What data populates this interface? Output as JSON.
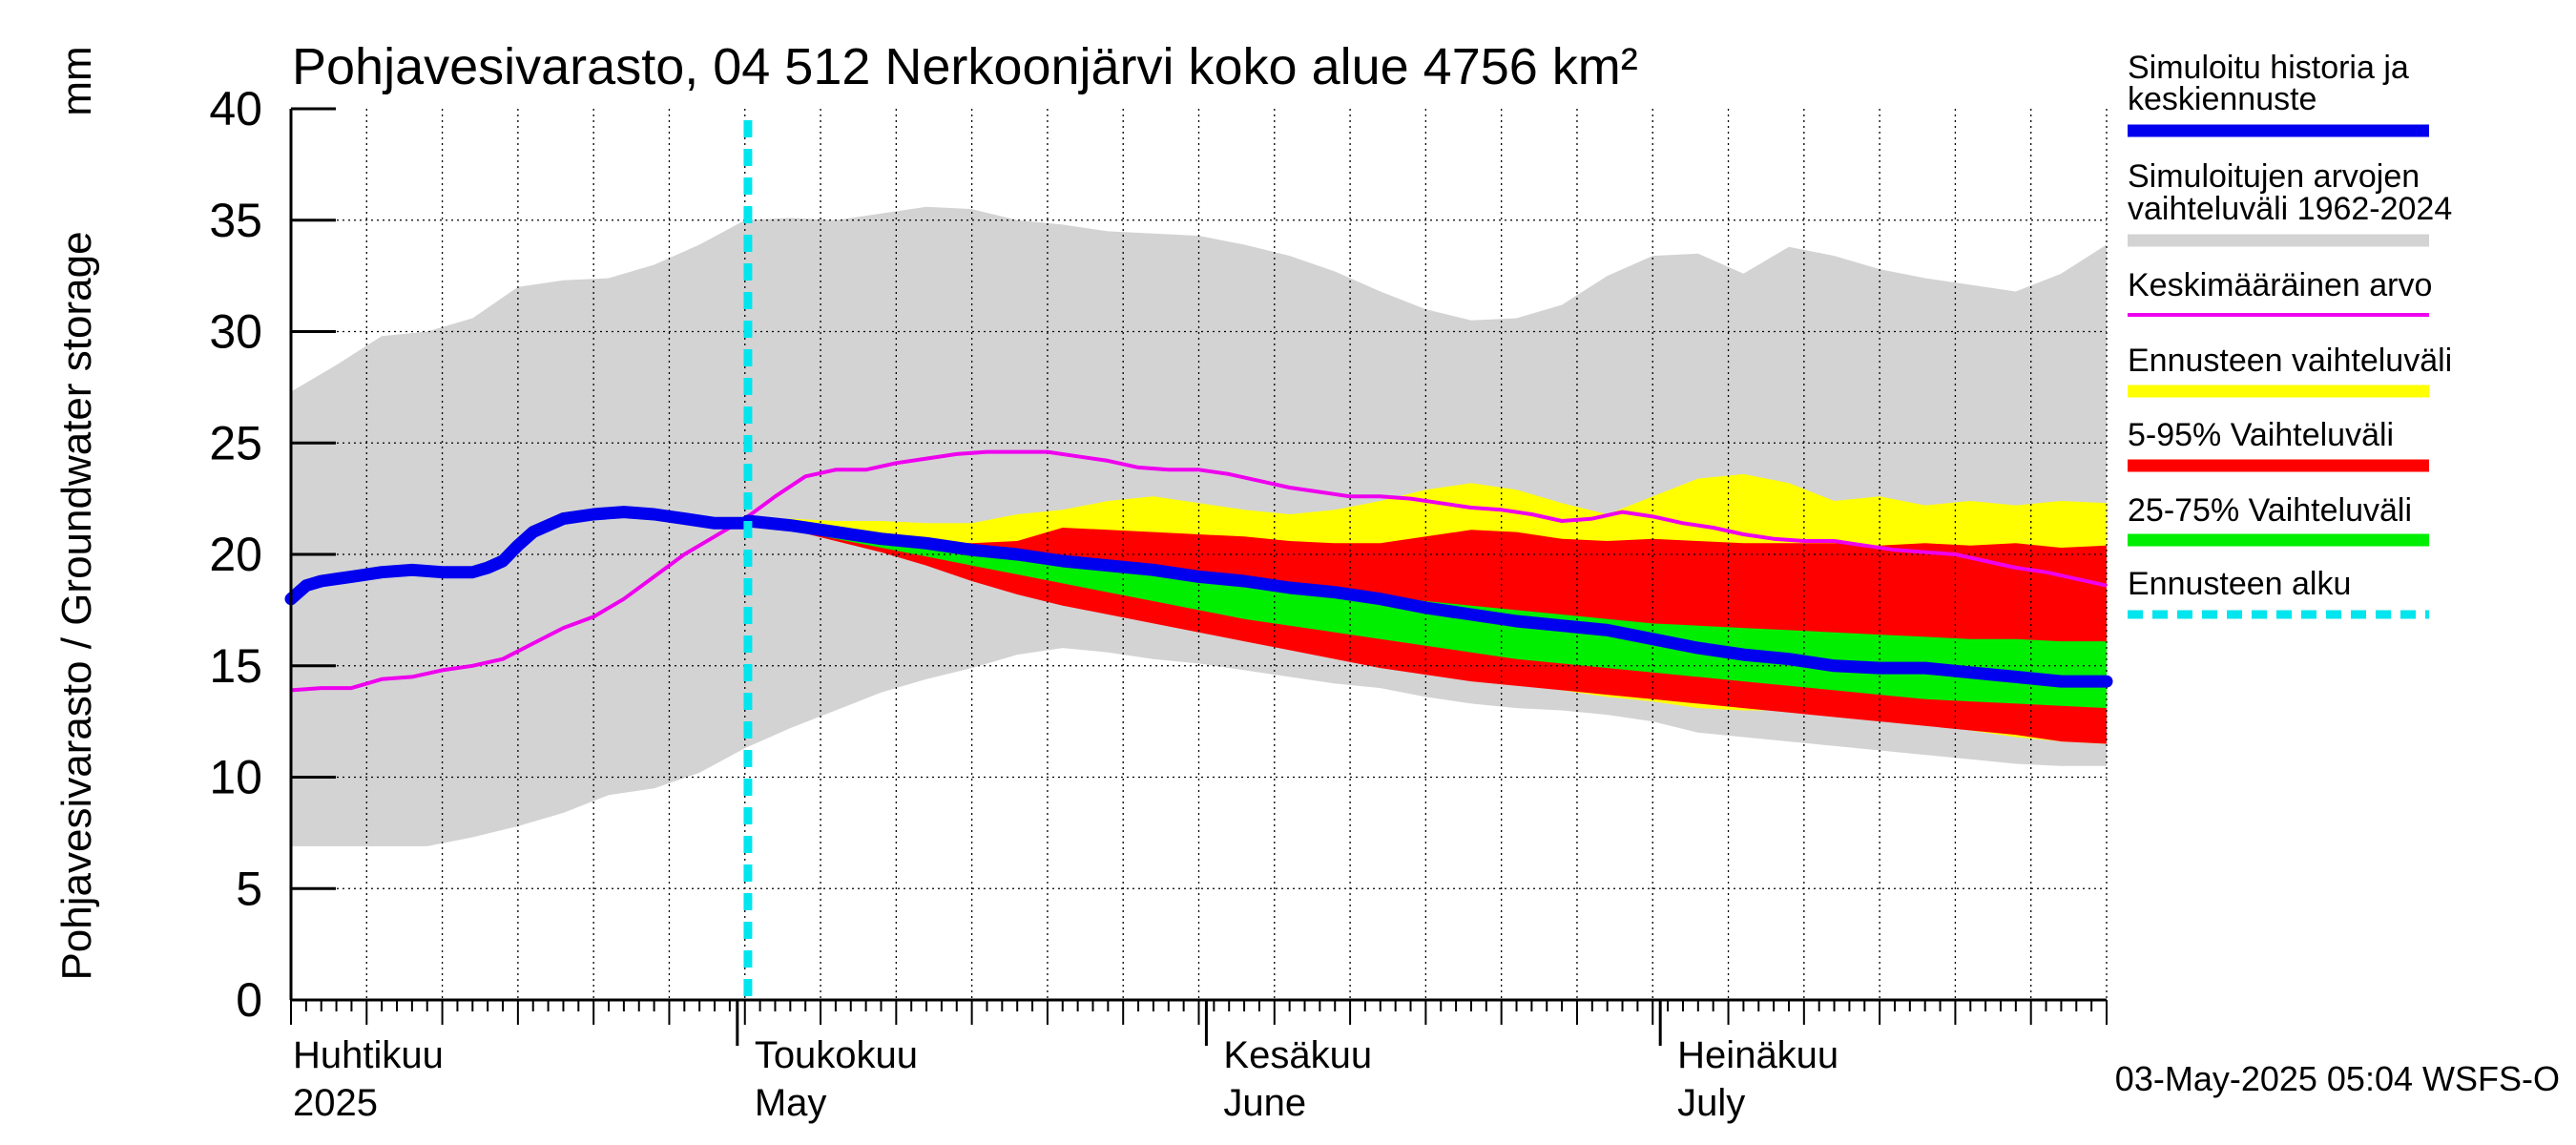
{
  "chart_data": {
    "type": "area",
    "title": "Pohjavesivarasto, 04 512 Nerkoonjärvi koko alue 4756 km²",
    "ylabel": "Pohjavesivarasto / Groundwater storage",
    "yunit": "mm",
    "ylim": [
      0,
      40
    ],
    "yticks": [
      "0",
      "5",
      "10",
      "15",
      "20",
      "25",
      "30",
      "35",
      "40"
    ],
    "xlim_day": [
      0,
      120
    ],
    "month_labels": [
      {
        "day": 0,
        "fi": "Huhtikuu",
        "en": "2025"
      },
      {
        "day": 29.5,
        "fi": "Toukokuu",
        "en": "May"
      },
      {
        "day": 60.5,
        "fi": "Kesäkuu",
        "en": "June"
      },
      {
        "day": 90.5,
        "fi": "Heinäkuu",
        "en": "July"
      }
    ],
    "forecast_start_day": 30.2,
    "timestamp": "03-May-2025 05:04 WSFS-O",
    "colors": {
      "history_range": "#d3d3d3",
      "median": "#0000ee",
      "mean": "#ee00ee",
      "forecast_range": "#ffff00",
      "p5_95": "#ff0000",
      "p25_75": "#00ee00",
      "forecast_start": "#00e5ee"
    },
    "legend": [
      {
        "key": "median",
        "label_lines": [
          "Simuloitu historia ja",
          "keskiennuste"
        ],
        "style": "thick"
      },
      {
        "key": "history_range",
        "label_lines": [
          "Simuloitujen arvojen",
          "vaihteluväli 1962-2024"
        ],
        "style": "thick"
      },
      {
        "key": "mean",
        "label_lines": [
          "Keskimääräinen arvo"
        ],
        "style": "thin"
      },
      {
        "key": "forecast_range",
        "label_lines": [
          "Ennusteen vaihteluväli"
        ],
        "style": "thick"
      },
      {
        "key": "p5_95",
        "label_lines": [
          "5-95% Vaihteluväli"
        ],
        "style": "thick"
      },
      {
        "key": "p25_75",
        "label_lines": [
          "25-75% Vaihteluväli"
        ],
        "style": "thick"
      },
      {
        "key": "forecast_start",
        "label_lines": [
          "Ennusteen alku"
        ],
        "style": "dashed"
      }
    ],
    "series": {
      "history_range": {
        "x": [
          0,
          3,
          6,
          9,
          12,
          15,
          18,
          21,
          24,
          27,
          30,
          33,
          36,
          39,
          42,
          45,
          48,
          51,
          54,
          57,
          60,
          63,
          66,
          69,
          72,
          75,
          78,
          81,
          84,
          87,
          90,
          93,
          96,
          99,
          102,
          105,
          108,
          111,
          114,
          117,
          120
        ],
        "upper": [
          27.3,
          28.5,
          29.8,
          30.0,
          30.6,
          32.0,
          32.3,
          32.4,
          33.0,
          33.9,
          35.0,
          35.1,
          35.0,
          35.3,
          35.6,
          35.5,
          35.0,
          34.8,
          34.5,
          34.4,
          34.3,
          33.9,
          33.4,
          32.7,
          31.8,
          31.0,
          30.5,
          30.6,
          31.2,
          32.5,
          33.4,
          33.5,
          32.6,
          33.8,
          33.4,
          32.8,
          32.4,
          32.1,
          31.8,
          32.6,
          33.9
        ],
        "lower": [
          6.9,
          6.9,
          6.9,
          6.9,
          7.3,
          7.8,
          8.4,
          9.2,
          9.5,
          10.2,
          11.3,
          12.2,
          13.0,
          13.8,
          14.4,
          14.9,
          15.5,
          15.8,
          15.6,
          15.3,
          15.1,
          14.8,
          14.5,
          14.2,
          14.0,
          13.6,
          13.3,
          13.1,
          13.0,
          12.8,
          12.5,
          12.0,
          11.8,
          11.6,
          11.4,
          11.2,
          11.0,
          10.8,
          10.6,
          10.5,
          10.5
        ]
      },
      "forecast_range": {
        "x": [
          30.2,
          33,
          36,
          39,
          42,
          45,
          48,
          51,
          54,
          57,
          60,
          63,
          66,
          69,
          72,
          75,
          78,
          81,
          84,
          87,
          90,
          93,
          96,
          99,
          102,
          105,
          108,
          111,
          114,
          117,
          120
        ],
        "upper": [
          21.6,
          21.6,
          21.5,
          21.5,
          21.4,
          21.4,
          21.8,
          22.0,
          22.4,
          22.6,
          22.3,
          22.0,
          21.8,
          22.0,
          22.4,
          22.9,
          23.2,
          22.9,
          22.3,
          21.8,
          22.6,
          23.4,
          23.6,
          23.2,
          22.4,
          22.6,
          22.2,
          22.4,
          22.2,
          22.4,
          22.3
        ],
        "lower": [
          21.4,
          21.2,
          20.8,
          20.2,
          19.7,
          19.1,
          18.5,
          18.0,
          17.6,
          17.3,
          16.9,
          16.6,
          16.3,
          16.0,
          15.5,
          15.0,
          14.5,
          14.2,
          13.9,
          13.6,
          13.4,
          13.1,
          13.0,
          13.0,
          12.9,
          12.7,
          12.4,
          12.1,
          11.8,
          11.6,
          11.5
        ]
      },
      "p5_95": {
        "x": [
          30.2,
          33,
          36,
          39,
          42,
          45,
          48,
          51,
          54,
          57,
          60,
          63,
          66,
          69,
          72,
          75,
          78,
          81,
          84,
          87,
          90,
          93,
          96,
          99,
          102,
          105,
          108,
          111,
          114,
          117,
          120
        ],
        "upper": [
          21.5,
          21.4,
          21.2,
          20.8,
          20.6,
          20.5,
          20.6,
          21.2,
          21.1,
          21.0,
          20.9,
          20.8,
          20.6,
          20.5,
          20.5,
          20.8,
          21.1,
          21.0,
          20.7,
          20.6,
          20.7,
          20.6,
          20.5,
          20.5,
          20.5,
          20.4,
          20.5,
          20.4,
          20.5,
          20.3,
          20.4
        ],
        "lower": [
          21.4,
          21.1,
          20.6,
          20.1,
          19.5,
          18.8,
          18.2,
          17.7,
          17.3,
          16.9,
          16.5,
          16.1,
          15.7,
          15.3,
          14.9,
          14.6,
          14.3,
          14.1,
          13.9,
          13.7,
          13.5,
          13.3,
          13.1,
          12.9,
          12.7,
          12.5,
          12.3,
          12.1,
          11.9,
          11.6,
          11.5
        ]
      },
      "p25_75": {
        "x": [
          30.2,
          33,
          36,
          39,
          42,
          45,
          48,
          51,
          54,
          57,
          60,
          63,
          66,
          69,
          72,
          75,
          78,
          81,
          84,
          87,
          90,
          93,
          96,
          99,
          102,
          105,
          108,
          111,
          114,
          117,
          120
        ],
        "upper": [
          21.4,
          21.2,
          20.9,
          20.6,
          20.3,
          20.1,
          19.8,
          19.6,
          19.4,
          19.2,
          19.0,
          18.8,
          18.6,
          18.4,
          18.2,
          17.9,
          17.7,
          17.5,
          17.3,
          17.1,
          16.9,
          16.8,
          16.7,
          16.6,
          16.5,
          16.4,
          16.3,
          16.2,
          16.2,
          16.1,
          16.1
        ],
        "lower": [
          21.4,
          21.1,
          20.7,
          20.3,
          19.9,
          19.5,
          19.1,
          18.7,
          18.3,
          17.9,
          17.5,
          17.1,
          16.8,
          16.5,
          16.2,
          15.9,
          15.6,
          15.3,
          15.1,
          14.9,
          14.7,
          14.5,
          14.3,
          14.1,
          13.9,
          13.7,
          13.5,
          13.4,
          13.3,
          13.2,
          13.1
        ]
      },
      "median": {
        "x": [
          0,
          1,
          2,
          3,
          4,
          6,
          8,
          10,
          12,
          13,
          14,
          15,
          16,
          18,
          20,
          22,
          24,
          26,
          28,
          30,
          30.2,
          33,
          36,
          39,
          42,
          45,
          48,
          51,
          54,
          57,
          60,
          63,
          66,
          69,
          72,
          75,
          78,
          81,
          84,
          87,
          90,
          93,
          96,
          99,
          102,
          105,
          108,
          111,
          114,
          117,
          120
        ],
        "y": [
          18.0,
          18.6,
          18.8,
          18.9,
          19.0,
          19.2,
          19.3,
          19.2,
          19.2,
          19.4,
          19.7,
          20.4,
          21.0,
          21.6,
          21.8,
          21.9,
          21.8,
          21.6,
          21.4,
          21.4,
          21.5,
          21.3,
          21.0,
          20.7,
          20.5,
          20.2,
          20.0,
          19.7,
          19.5,
          19.3,
          19.0,
          18.8,
          18.5,
          18.3,
          18.0,
          17.6,
          17.3,
          17.0,
          16.8,
          16.6,
          16.2,
          15.8,
          15.5,
          15.3,
          15.0,
          14.9,
          14.9,
          14.7,
          14.5,
          14.3,
          14.3
        ]
      },
      "mean": {
        "x": [
          0,
          2,
          4,
          6,
          8,
          10,
          12,
          14,
          16,
          18,
          20,
          22,
          24,
          26,
          28,
          30,
          32,
          34,
          36,
          38,
          40,
          42,
          44,
          46,
          48,
          50,
          52,
          54,
          56,
          58,
          60,
          62,
          64,
          66,
          68,
          70,
          72,
          74,
          76,
          78,
          80,
          82,
          84,
          86,
          88,
          90,
          92,
          94,
          96,
          98,
          100,
          102,
          104,
          106,
          108,
          110,
          112,
          114,
          116,
          118,
          120
        ],
        "y": [
          13.9,
          14.0,
          14.0,
          14.4,
          14.5,
          14.8,
          15.0,
          15.3,
          16.0,
          16.7,
          17.2,
          18.0,
          19.0,
          20.0,
          20.8,
          21.6,
          22.6,
          23.5,
          23.8,
          23.8,
          24.1,
          24.3,
          24.5,
          24.6,
          24.6,
          24.6,
          24.4,
          24.2,
          23.9,
          23.8,
          23.8,
          23.6,
          23.3,
          23.0,
          22.8,
          22.6,
          22.6,
          22.5,
          22.3,
          22.1,
          22.0,
          21.8,
          21.5,
          21.6,
          21.9,
          21.7,
          21.4,
          21.2,
          20.9,
          20.7,
          20.6,
          20.6,
          20.4,
          20.2,
          20.1,
          20.0,
          19.7,
          19.4,
          19.2,
          18.9,
          18.6
        ]
      }
    }
  }
}
